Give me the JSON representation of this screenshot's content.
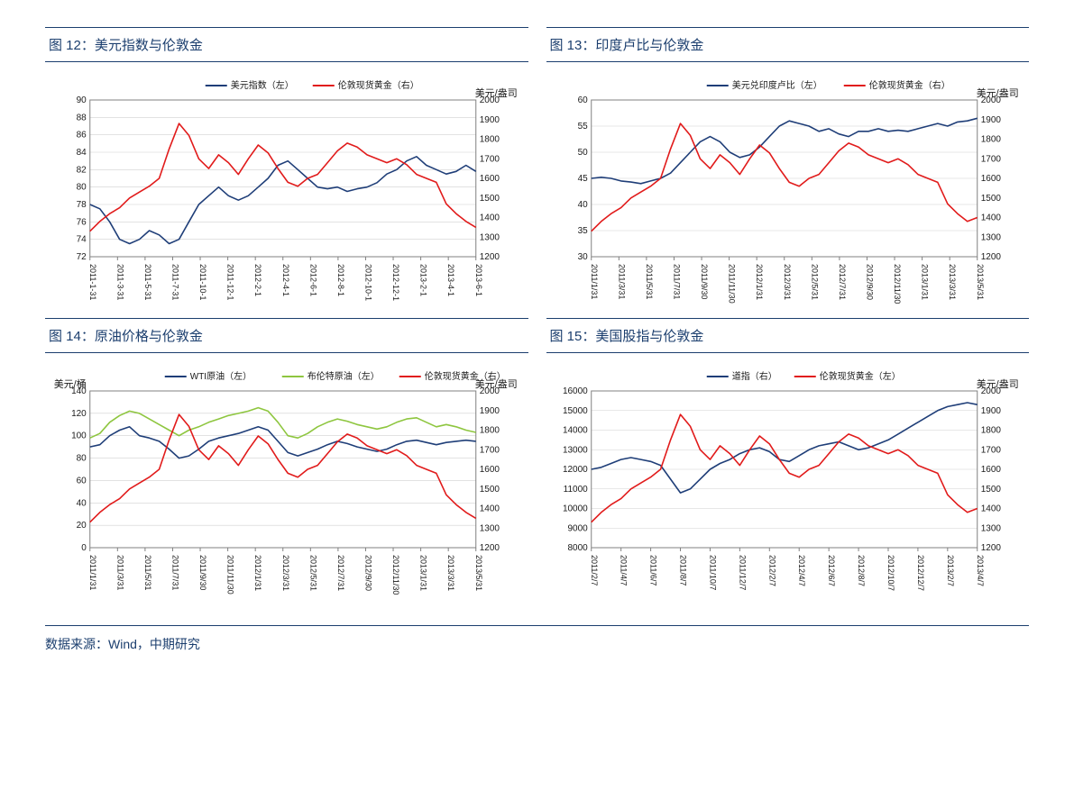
{
  "layout": {
    "title_color": "#1b3e6e",
    "rule_color": "#1b3e6e",
    "grid_color": "#d0d0d0",
    "axis_color": "#808080",
    "bg_color": "#ffffff"
  },
  "footer": {
    "text": "数据来源：Wind，中期研究"
  },
  "charts": [
    {
      "id": "c12",
      "title": "图 12：美元指数与伦敦金",
      "type": "line-dual-axis",
      "left_unit": "",
      "right_unit": "美元/盎司",
      "left_ylim": [
        72,
        90
      ],
      "left_tick_step": 2,
      "right_ylim": [
        1200,
        2000
      ],
      "right_tick_step": 100,
      "x_labels": [
        "2011-1-31",
        "2011-3-31",
        "2011-5-31",
        "2011-7-31",
        "2011-10-1",
        "2011-12-1",
        "2012-2-1",
        "2012-4-1",
        "2012-6-1",
        "2012-8-1",
        "2012-10-1",
        "2012-12-1",
        "2013-2-1",
        "2013-4-1",
        "2013-6-1"
      ],
      "x_label_rotation": 90,
      "series": [
        {
          "name": "美元指数（左）",
          "axis": "left",
          "color": "#1f3e78",
          "width": 1.6,
          "values": [
            78,
            77.5,
            76,
            74,
            73.5,
            74,
            75,
            74.5,
            73.5,
            74,
            76,
            78,
            79,
            80,
            79,
            78.5,
            79,
            80,
            81,
            82.5,
            83,
            82,
            81,
            80,
            79.8,
            80,
            79.5,
            79.8,
            80,
            80.5,
            81.5,
            82,
            83,
            83.5,
            82.5,
            82,
            81.5,
            81.8,
            82.5,
            81.8
          ]
        },
        {
          "name": "伦敦现货黄金（右）",
          "axis": "right",
          "color": "#e11b1b",
          "width": 1.6,
          "values": [
            1330,
            1380,
            1420,
            1450,
            1500,
            1530,
            1560,
            1600,
            1750,
            1880,
            1820,
            1700,
            1650,
            1720,
            1680,
            1620,
            1700,
            1770,
            1730,
            1650,
            1580,
            1560,
            1600,
            1620,
            1680,
            1740,
            1780,
            1760,
            1720,
            1700,
            1680,
            1700,
            1670,
            1620,
            1600,
            1580,
            1470,
            1420,
            1380,
            1350
          ]
        }
      ]
    },
    {
      "id": "c13",
      "title": "图 13：印度卢比与伦敦金",
      "type": "line-dual-axis",
      "left_unit": "",
      "right_unit": "美元/盎司",
      "left_ylim": [
        30,
        60
      ],
      "left_tick_step": 5,
      "right_ylim": [
        1200,
        2000
      ],
      "right_tick_step": 100,
      "x_labels": [
        "2011/1/31",
        "2011/3/31",
        "2011/5/31",
        "2011/7/31",
        "2011/9/30",
        "2011/11/30",
        "2012/1/31",
        "2012/3/31",
        "2012/5/31",
        "2012/7/31",
        "2012/9/30",
        "2012/11/30",
        "2013/1/31",
        "2013/3/31",
        "2013/5/31"
      ],
      "x_label_rotation": 90,
      "series": [
        {
          "name": "美元兑印度卢比（左）",
          "axis": "left",
          "color": "#1f3e78",
          "width": 1.6,
          "values": [
            45,
            45.2,
            45,
            44.5,
            44.3,
            44,
            44.5,
            45,
            46,
            48,
            50,
            52,
            53,
            52,
            50,
            49,
            49.5,
            51,
            53,
            55,
            56,
            55.5,
            55,
            54,
            54.5,
            53.5,
            53,
            54,
            54,
            54.5,
            54,
            54.2,
            54,
            54.5,
            55,
            55.5,
            55,
            55.8,
            56,
            56.5
          ]
        },
        {
          "name": "伦敦现货黄金（右）",
          "axis": "right",
          "color": "#e11b1b",
          "width": 1.6,
          "values": [
            1330,
            1380,
            1420,
            1450,
            1500,
            1530,
            1560,
            1600,
            1750,
            1880,
            1820,
            1700,
            1650,
            1720,
            1680,
            1620,
            1700,
            1770,
            1730,
            1650,
            1580,
            1560,
            1600,
            1620,
            1680,
            1740,
            1780,
            1760,
            1720,
            1700,
            1680,
            1700,
            1670,
            1620,
            1600,
            1580,
            1470,
            1420,
            1380,
            1400
          ]
        }
      ]
    },
    {
      "id": "c14",
      "title": "图 14：原油价格与伦敦金",
      "type": "line-dual-axis",
      "left_unit": "美元/桶",
      "right_unit": "美元/盎司",
      "left_ylim": [
        0,
        140
      ],
      "left_tick_step": 20,
      "right_ylim": [
        1200,
        2000
      ],
      "right_tick_step": 100,
      "x_labels": [
        "2011/1/31",
        "2011/3/31",
        "2011/5/31",
        "2011/7/31",
        "2011/9/30",
        "2011/11/30",
        "2012/1/31",
        "2012/3/31",
        "2012/5/31",
        "2012/7/31",
        "2012/9/30",
        "2012/11/30",
        "2013/1/31",
        "2013/3/31",
        "2013/5/31"
      ],
      "x_label_rotation": 90,
      "series": [
        {
          "name": "WTI原油（左）",
          "axis": "left",
          "color": "#1f3e78",
          "width": 1.6,
          "values": [
            90,
            92,
            100,
            105,
            108,
            100,
            98,
            95,
            88,
            80,
            82,
            88,
            95,
            98,
            100,
            102,
            105,
            108,
            105,
            95,
            85,
            82,
            85,
            88,
            92,
            95,
            93,
            90,
            88,
            86,
            88,
            92,
            95,
            96,
            94,
            92,
            94,
            95,
            96,
            95
          ]
        },
        {
          "name": "布伦特原油（左）",
          "axis": "left",
          "color": "#8ec63f",
          "width": 1.6,
          "values": [
            98,
            102,
            112,
            118,
            122,
            120,
            115,
            110,
            105,
            100,
            105,
            108,
            112,
            115,
            118,
            120,
            122,
            125,
            122,
            112,
            100,
            98,
            102,
            108,
            112,
            115,
            113,
            110,
            108,
            106,
            108,
            112,
            115,
            116,
            112,
            108,
            110,
            108,
            105,
            103
          ]
        },
        {
          "name": "伦敦现货黄金（右）",
          "axis": "right",
          "color": "#e11b1b",
          "width": 1.6,
          "values": [
            1330,
            1380,
            1420,
            1450,
            1500,
            1530,
            1560,
            1600,
            1750,
            1880,
            1820,
            1700,
            1650,
            1720,
            1680,
            1620,
            1700,
            1770,
            1730,
            1650,
            1580,
            1560,
            1600,
            1620,
            1680,
            1740,
            1780,
            1760,
            1720,
            1700,
            1680,
            1700,
            1670,
            1620,
            1600,
            1580,
            1470,
            1420,
            1380,
            1350
          ]
        }
      ]
    },
    {
      "id": "c15",
      "title": "图 15：美国股指与伦敦金",
      "type": "line-dual-axis",
      "left_unit": "",
      "right_unit": "美元/盎司",
      "left_ylim": [
        8000,
        16000
      ],
      "left_tick_step": 1000,
      "right_ylim": [
        1200,
        2000
      ],
      "right_tick_step": 100,
      "x_labels": [
        "2011/2/7",
        "2011/4/7",
        "2011/6/7",
        "2011/8/7",
        "2011/10/7",
        "2011/12/7",
        "2012/2/7",
        "2012/4/7",
        "2012/6/7",
        "2012/8/7",
        "2012/10/7",
        "2012/12/7",
        "2013/2/7",
        "2013/4/7"
      ],
      "x_label_rotation": 90,
      "series": [
        {
          "name": "道指（右）",
          "axis": "left",
          "color": "#1f3e78",
          "width": 1.6,
          "values": [
            12000,
            12100,
            12300,
            12500,
            12600,
            12500,
            12400,
            12200,
            11500,
            10800,
            11000,
            11500,
            12000,
            12300,
            12500,
            12800,
            13000,
            13100,
            12900,
            12500,
            12400,
            12700,
            13000,
            13200,
            13300,
            13400,
            13200,
            13000,
            13100,
            13300,
            13500,
            13800,
            14100,
            14400,
            14700,
            15000,
            15200,
            15300,
            15400,
            15300
          ]
        },
        {
          "name": "伦敦现货黄金（左）",
          "axis": "right",
          "color": "#e11b1b",
          "width": 1.6,
          "values": [
            1330,
            1380,
            1420,
            1450,
            1500,
            1530,
            1560,
            1600,
            1750,
            1880,
            1820,
            1700,
            1650,
            1720,
            1680,
            1620,
            1700,
            1770,
            1730,
            1650,
            1580,
            1560,
            1600,
            1620,
            1680,
            1740,
            1780,
            1760,
            1720,
            1700,
            1680,
            1700,
            1670,
            1620,
            1600,
            1580,
            1470,
            1420,
            1380,
            1400
          ]
        }
      ]
    }
  ]
}
